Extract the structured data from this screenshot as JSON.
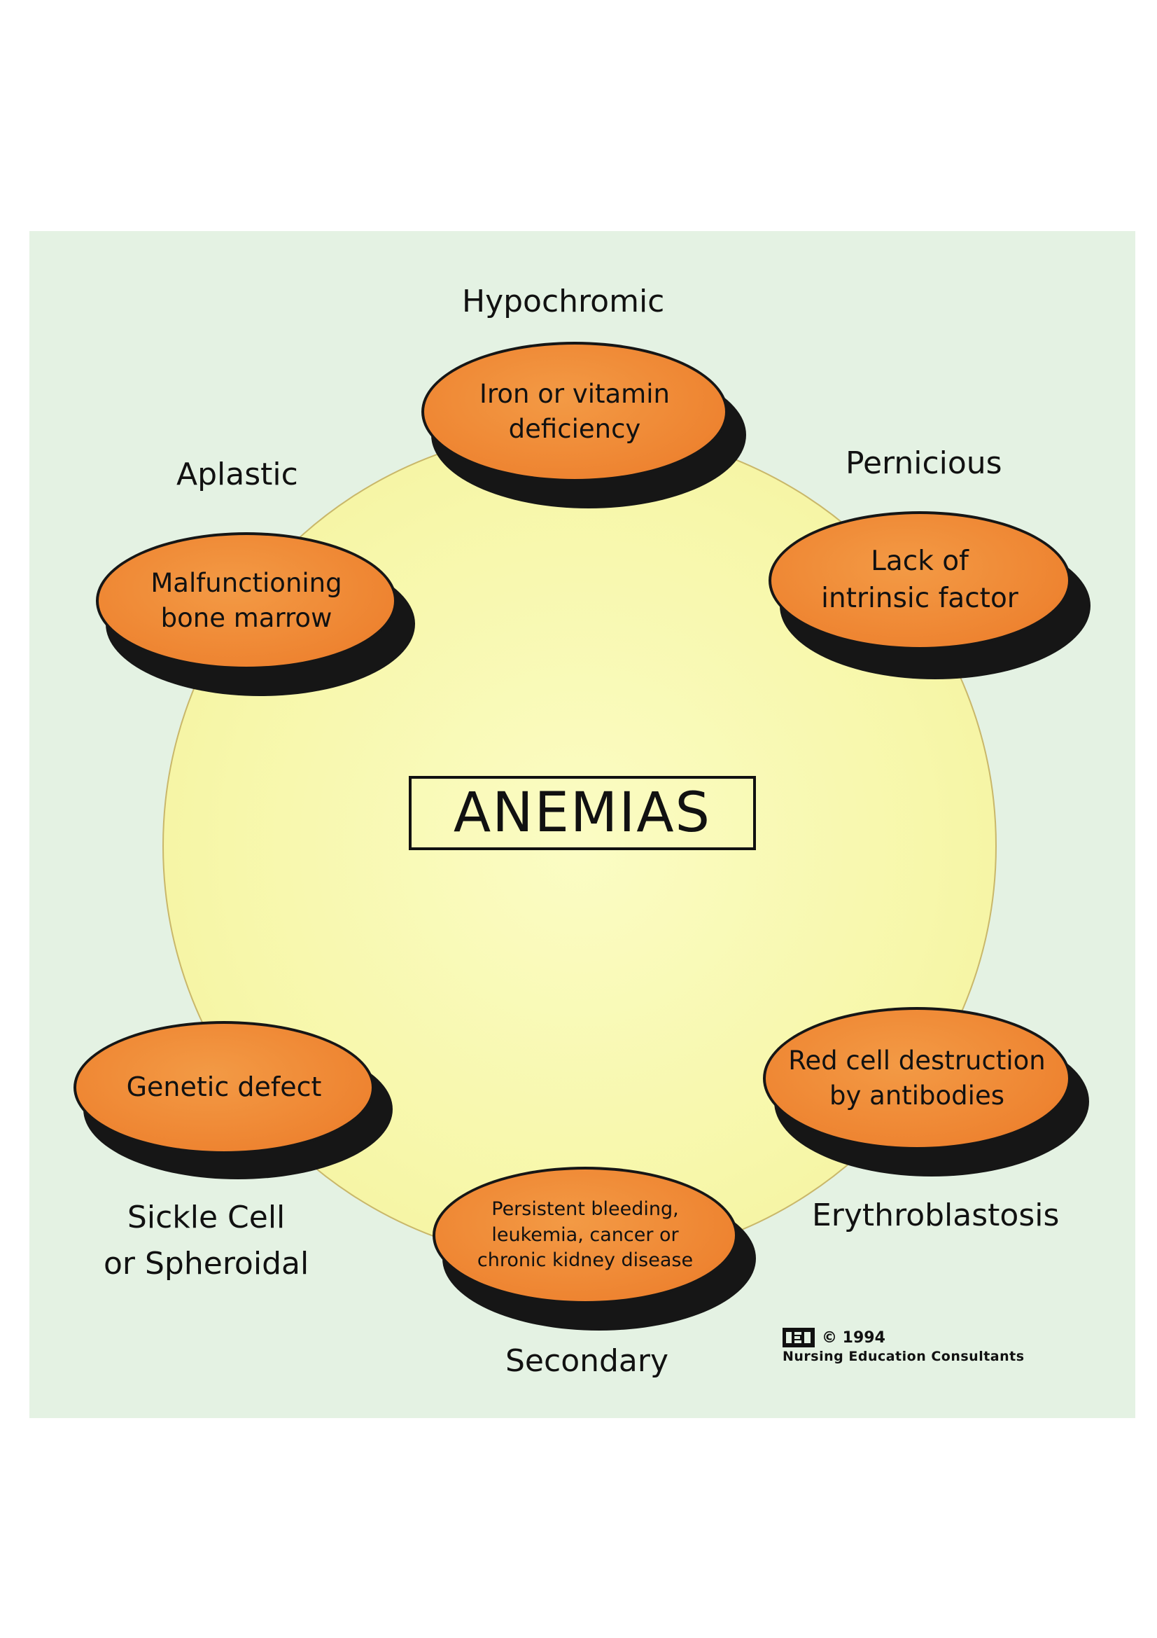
{
  "diagram": {
    "title": "ANEMIAS",
    "categories": [
      {
        "type": "Hypochromic",
        "cause_lines": [
          "Iron or vitamin",
          "deficiency"
        ]
      },
      {
        "type": "Pernicious",
        "cause_lines": [
          "Lack of",
          "intrinsic factor"
        ]
      },
      {
        "type": "Erythroblastosis",
        "cause_lines": [
          "Red cell destruction",
          "by antibodies"
        ]
      },
      {
        "type": "Secondary",
        "cause_lines": [
          "Persistent bleeding,",
          "leukemia, cancer or",
          "chronic kidney disease"
        ]
      },
      {
        "type_lines": [
          "Sickle Cell",
          "or Spheroidal"
        ],
        "cause_lines": [
          "Genetic defect"
        ]
      },
      {
        "type": "Aplastic",
        "cause_lines": [
          "Malfunctioning",
          "bone marrow"
        ]
      }
    ],
    "credit": {
      "logo_text": "NEC",
      "copyright": "© 1994",
      "organization": "Nursing Education Consultants"
    }
  }
}
